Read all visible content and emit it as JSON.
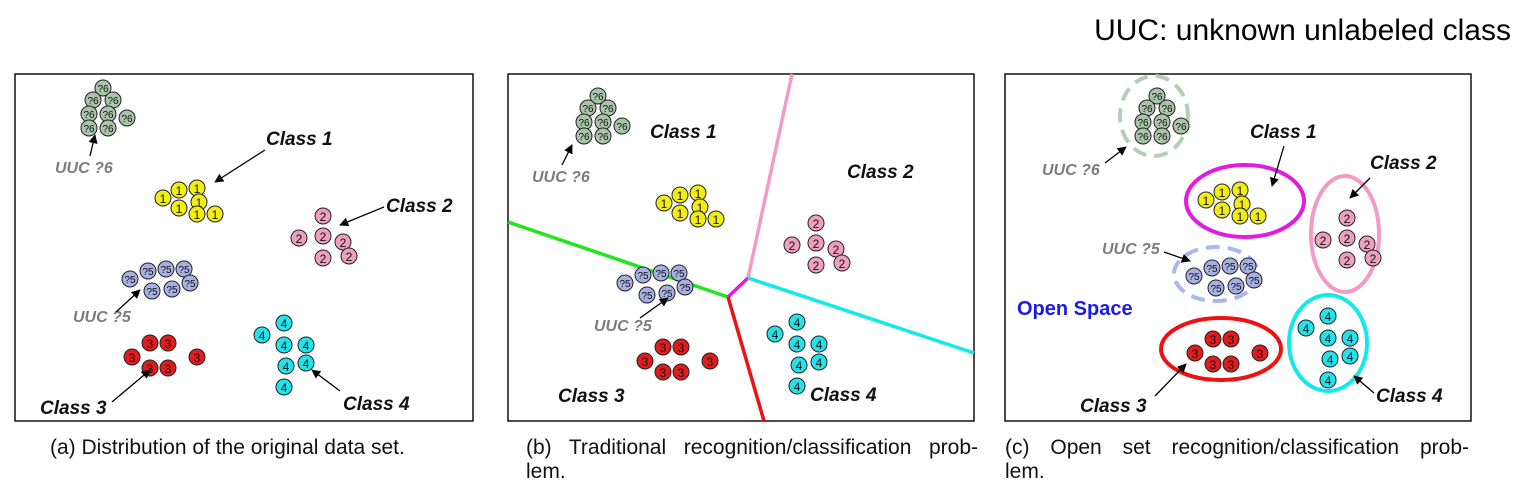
{
  "header": {
    "title": "UUC: unknown unlabeled class"
  },
  "panels": [
    {
      "caption_line1": "(a) Distribution of the original data set.",
      "caption_line2": "",
      "labels": {
        "class1": "Class 1",
        "class2": "Class 2",
        "class3": "Class 3",
        "class4": "Class 4",
        "uuc6": "UUC ?6",
        "uuc5": "UUC ?5"
      }
    },
    {
      "caption_line1": "(b) Traditional recognition/classification prob-",
      "caption_line2": "lem.",
      "labels": {
        "class1": "Class 1",
        "class2": "Class 2",
        "class3": "Class 3",
        "class4": "Class 4",
        "uuc6": "UUC ?6",
        "uuc5": "UUC ?5"
      }
    },
    {
      "caption_line1": "(c) Open set recognition/classification prob-",
      "caption_line2": "lem.",
      "labels": {
        "class1": "Class 1",
        "class2": "Class 2",
        "class3": "Class 3",
        "class4": "Class 4",
        "uuc6": "UUC ?6",
        "uuc5": "UUC ?5",
        "open_space": "Open Space"
      }
    }
  ],
  "clusters": {
    "uuc6": {
      "token": "?6",
      "fill": "#a9c4a9"
    },
    "class1": {
      "token": "1",
      "fill": "#f2ee12"
    },
    "class2": {
      "token": "2",
      "fill": "#ef9fbd"
    },
    "uuc5": {
      "token": "?5",
      "fill": "#a6b1e3"
    },
    "class3": {
      "token": "3",
      "fill": "#e01c1c"
    },
    "class4": {
      "token": "4",
      "fill": "#22e3ea"
    }
  },
  "colors": {
    "boundary_pink": "#f29bc4",
    "boundary_green": "#22e61c",
    "boundary_magenta": "#e11be1",
    "boundary_red": "#ee1111",
    "boundary_cyan": "#11eaea",
    "open_space_text": "#1a1aee",
    "uuc_text": "#7c7c7c"
  }
}
